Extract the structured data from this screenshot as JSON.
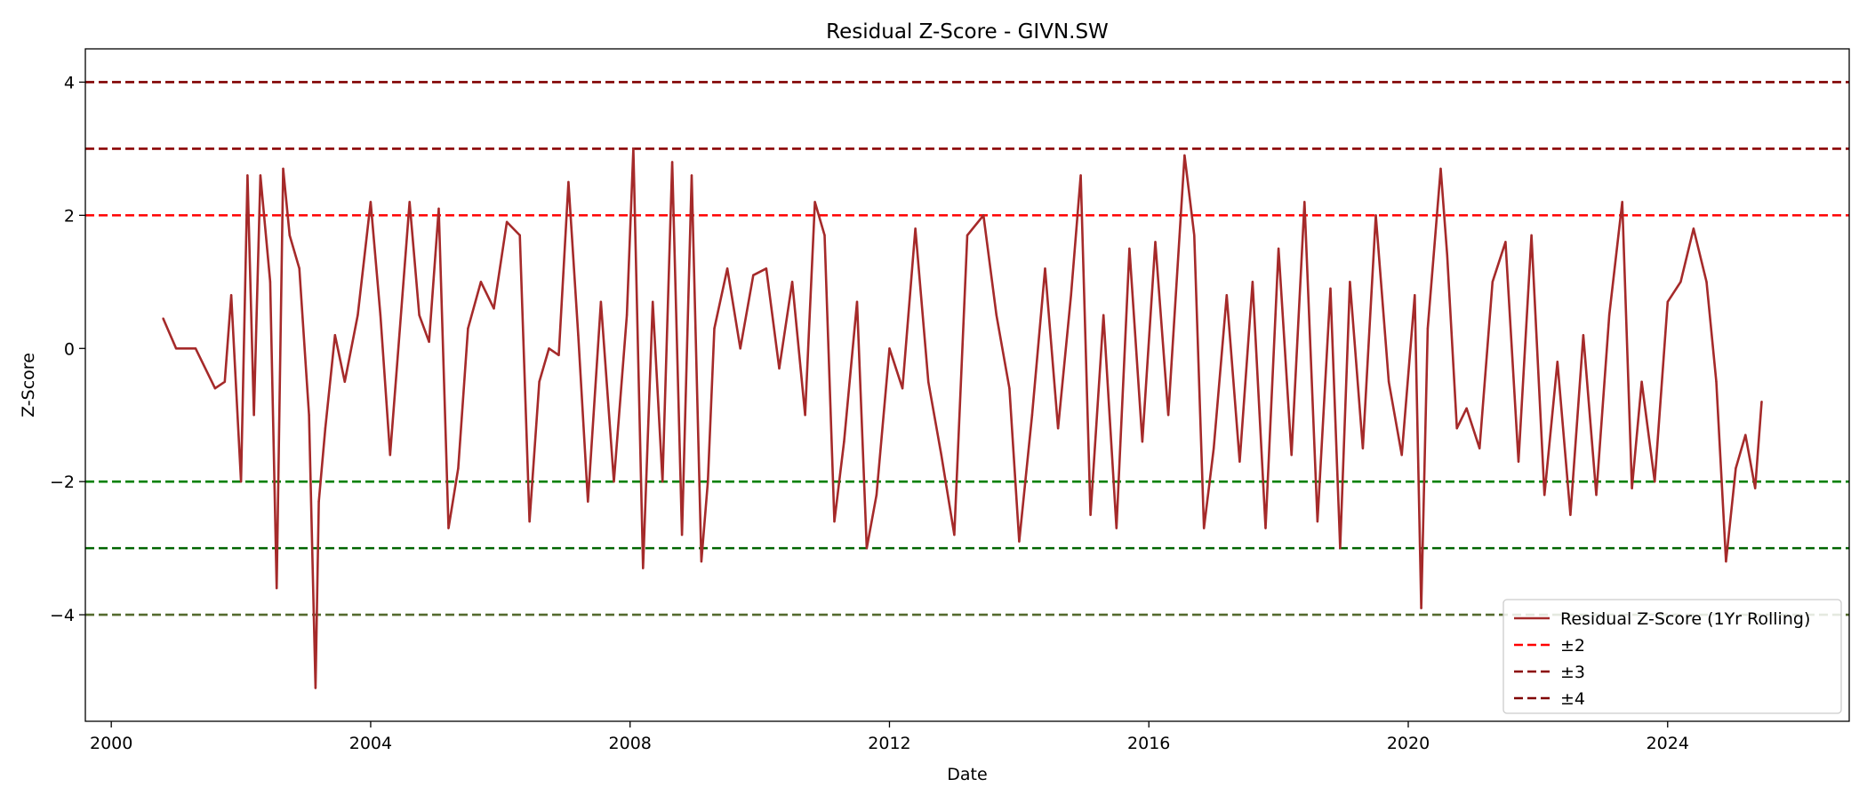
{
  "chart_data": {
    "type": "line",
    "title": "Residual Z-Score - GIVN.SW",
    "xlabel": "Date",
    "ylabel": "Z-Score",
    "xlim": [
      1999.6,
      2026.8
    ],
    "ylim": [
      -5.6,
      4.5
    ],
    "xticks": [
      2000,
      2004,
      2008,
      2012,
      2016,
      2020,
      2024
    ],
    "xtick_labels": [
      "2000",
      "2004",
      "2008",
      "2012",
      "2016",
      "2020",
      "2024"
    ],
    "yticks": [
      4,
      2,
      0,
      -2,
      -4
    ],
    "ytick_labels": [
      "4",
      "2",
      "0",
      "−2",
      "−4"
    ],
    "grid": false,
    "legend_position": "lower-right",
    "legend": [
      {
        "label": "Residual Z-Score (1Yr Rolling)",
        "color": "#a52a2a",
        "style": "solid"
      },
      {
        "label": "±2",
        "color": "#ff0000",
        "style": "dashed"
      },
      {
        "label": "±3",
        "color": "#8b0000",
        "style": "dashed"
      },
      {
        "label": "±4",
        "color": "#800000",
        "style": "dashed"
      }
    ],
    "threshold_lines": [
      {
        "y": 4,
        "color": "#800000"
      },
      {
        "y": 3,
        "color": "#8b0000"
      },
      {
        "y": 2,
        "color": "#ff0000"
      },
      {
        "y": -2,
        "color": "#008000"
      },
      {
        "y": -3,
        "color": "#006400"
      },
      {
        "y": -4,
        "color": "#556b2f"
      }
    ],
    "series": [
      {
        "color": "#a52a2a",
        "x": [
          2000.8,
          2001.0,
          2001.3,
          2001.6,
          2001.75,
          2001.85,
          2002.0,
          2002.1,
          2002.2,
          2002.3,
          2002.45,
          2002.55,
          2002.65,
          2002.75,
          2002.9,
          2003.05,
          2003.15,
          2003.2,
          2003.3,
          2003.45,
          2003.6,
          2003.8,
          2004.0,
          2004.15,
          2004.3,
          2004.45,
          2004.6,
          2004.75,
          2004.9,
          2005.05,
          2005.2,
          2005.35,
          2005.5,
          2005.7,
          2005.9,
          2006.1,
          2006.3,
          2006.45,
          2006.6,
          2006.75,
          2006.9,
          2007.05,
          2007.2,
          2007.35,
          2007.55,
          2007.75,
          2007.95,
          2008.05,
          2008.2,
          2008.35,
          2008.5,
          2008.65,
          2008.8,
          2008.95,
          2009.1,
          2009.2,
          2009.3,
          2009.5,
          2009.7,
          2009.9,
          2010.1,
          2010.3,
          2010.5,
          2010.7,
          2010.85,
          2011.0,
          2011.15,
          2011.3,
          2011.5,
          2011.65,
          2011.8,
          2012.0,
          2012.2,
          2012.4,
          2012.6,
          2012.8,
          2013.0,
          2013.2,
          2013.45,
          2013.65,
          2013.85,
          2014.0,
          2014.2,
          2014.4,
          2014.6,
          2014.8,
          2014.95,
          2015.1,
          2015.3,
          2015.5,
          2015.7,
          2015.9,
          2016.1,
          2016.3,
          2016.55,
          2016.7,
          2016.85,
          2017.0,
          2017.2,
          2017.4,
          2017.6,
          2017.8,
          2018.0,
          2018.2,
          2018.4,
          2018.6,
          2018.8,
          2018.95,
          2019.1,
          2019.3,
          2019.5,
          2019.7,
          2019.9,
          2020.1,
          2020.2,
          2020.3,
          2020.5,
          2020.6,
          2020.75,
          2020.9,
          2021.1,
          2021.3,
          2021.5,
          2021.7,
          2021.9,
          2022.1,
          2022.3,
          2022.5,
          2022.7,
          2022.9,
          2023.1,
          2023.3,
          2023.45,
          2023.6,
          2023.8,
          2024.0,
          2024.2,
          2024.4,
          2024.6,
          2024.75,
          2024.9,
          2025.05,
          2025.2,
          2025.35,
          2025.45
        ],
        "y": [
          0.45,
          0.0,
          0.0,
          -0.6,
          -0.5,
          0.8,
          -2.0,
          2.6,
          -1.0,
          2.6,
          1.0,
          -3.6,
          2.7,
          1.7,
          1.2,
          -1.0,
          -5.1,
          -2.3,
          -1.2,
          0.2,
          -0.5,
          0.5,
          2.2,
          0.5,
          -1.6,
          0.3,
          2.2,
          0.5,
          0.1,
          2.1,
          -2.7,
          -1.8,
          0.3,
          1.0,
          0.6,
          1.9,
          1.7,
          -2.6,
          -0.5,
          0.0,
          -0.1,
          2.5,
          0.2,
          -2.3,
          0.7,
          -2.0,
          0.5,
          3.0,
          -3.3,
          0.7,
          -2.0,
          2.8,
          -2.8,
          2.6,
          -3.2,
          -2.0,
          0.3,
          1.2,
          0.0,
          1.1,
          1.2,
          -0.3,
          1.0,
          -1.0,
          2.2,
          1.7,
          -2.6,
          -1.4,
          0.7,
          -3.0,
          -2.2,
          0.0,
          -0.6,
          1.8,
          -0.5,
          -1.6,
          -2.8,
          1.7,
          2.0,
          0.5,
          -0.6,
          -2.9,
          -1.0,
          1.2,
          -1.2,
          0.8,
          2.6,
          -2.5,
          0.5,
          -2.7,
          1.5,
          -1.4,
          1.6,
          -1.0,
          2.9,
          1.7,
          -2.7,
          -1.5,
          0.8,
          -1.7,
          1.0,
          -2.7,
          1.5,
          -1.6,
          2.2,
          -2.6,
          0.9,
          -3.0,
          1.0,
          -1.5,
          2.0,
          -0.5,
          -1.6,
          0.8,
          -3.9,
          0.3,
          2.7,
          1.4,
          -1.2,
          -0.9,
          -1.5,
          1.0,
          1.6,
          -1.7,
          1.7,
          -2.2,
          -0.2,
          -2.5,
          0.2,
          -2.2,
          0.5,
          2.2,
          -2.1,
          -0.5,
          -2.0,
          0.7,
          1.0,
          1.8,
          1.0,
          -0.5,
          -3.2,
          -1.8,
          -1.3,
          -2.1,
          -0.8
        ]
      }
    ]
  }
}
